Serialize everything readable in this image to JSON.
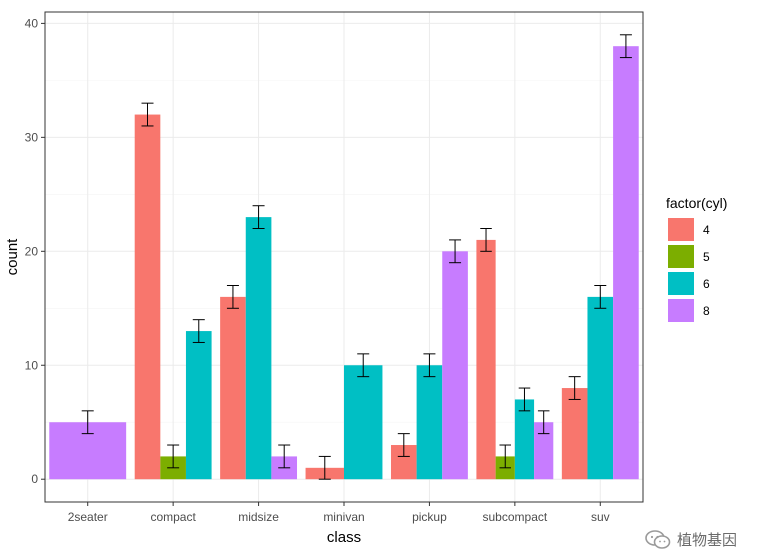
{
  "chart_data": {
    "type": "bar",
    "xlabel": "class",
    "ylabel": "count",
    "ylim": [
      -2,
      41
    ],
    "yticks": [
      0,
      10,
      20,
      30,
      40
    ],
    "categories": [
      "2seater",
      "compact",
      "midsize",
      "minivan",
      "pickup",
      "subcompact",
      "suv"
    ],
    "legend": {
      "title": "factor(cyl)",
      "position": "right"
    },
    "series": [
      {
        "name": "4",
        "color": "#F8766D",
        "values": [
          null,
          32,
          16,
          1,
          3,
          21,
          8
        ]
      },
      {
        "name": "5",
        "color": "#7CAE00",
        "values": [
          null,
          2,
          null,
          null,
          null,
          2,
          null
        ]
      },
      {
        "name": "6",
        "color": "#00BFC4",
        "values": [
          null,
          13,
          23,
          10,
          10,
          7,
          16
        ]
      },
      {
        "name": "8",
        "color": "#C77CFF",
        "values": [
          5,
          null,
          2,
          null,
          20,
          5,
          38
        ]
      }
    ],
    "error_bar": "±1",
    "grid": true
  },
  "watermark": {
    "text": "植物基因"
  }
}
